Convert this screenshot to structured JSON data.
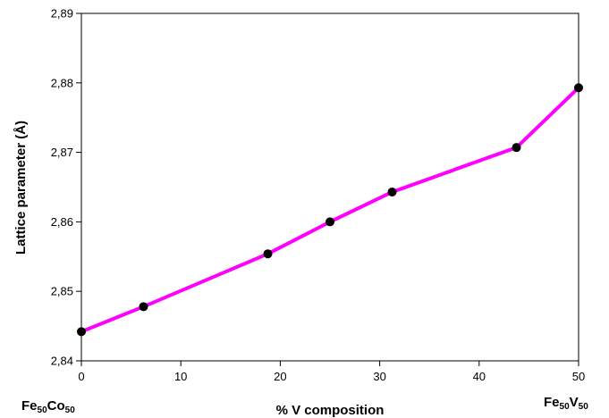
{
  "chart_data": {
    "type": "line",
    "title": "",
    "xlabel": "% V composition",
    "ylabel": "Lattice parameter (Å)",
    "xlim": [
      0,
      50
    ],
    "ylim": [
      2.84,
      2.89
    ],
    "x_ticks": [
      0,
      10,
      20,
      30,
      40,
      50
    ],
    "x_tick_labels": [
      "0",
      "10",
      "20",
      "30",
      "40",
      "50"
    ],
    "y_ticks": [
      2.84,
      2.85,
      2.86,
      2.87,
      2.88,
      2.89
    ],
    "y_tick_labels": [
      "2,84",
      "2,85",
      "2,86",
      "2,87",
      "2,88",
      "2,89"
    ],
    "grid": false,
    "series": [
      {
        "x": [
          0,
          6.25,
          18.75,
          25,
          31.25,
          43.75,
          50
        ],
        "y": [
          2.8442,
          2.8478,
          2.8554,
          2.86,
          2.8643,
          2.8707,
          2.8793
        ],
        "line_color": "#ff00ff",
        "marker_color": "#000000"
      }
    ],
    "endpoint_labels": {
      "left": {
        "base": "Fe",
        "sub1": "50",
        "el2": "Co",
        "sub2": "50"
      },
      "right": {
        "base": "Fe",
        "sub1": "50",
        "el2": "V",
        "sub2": "50"
      }
    }
  }
}
